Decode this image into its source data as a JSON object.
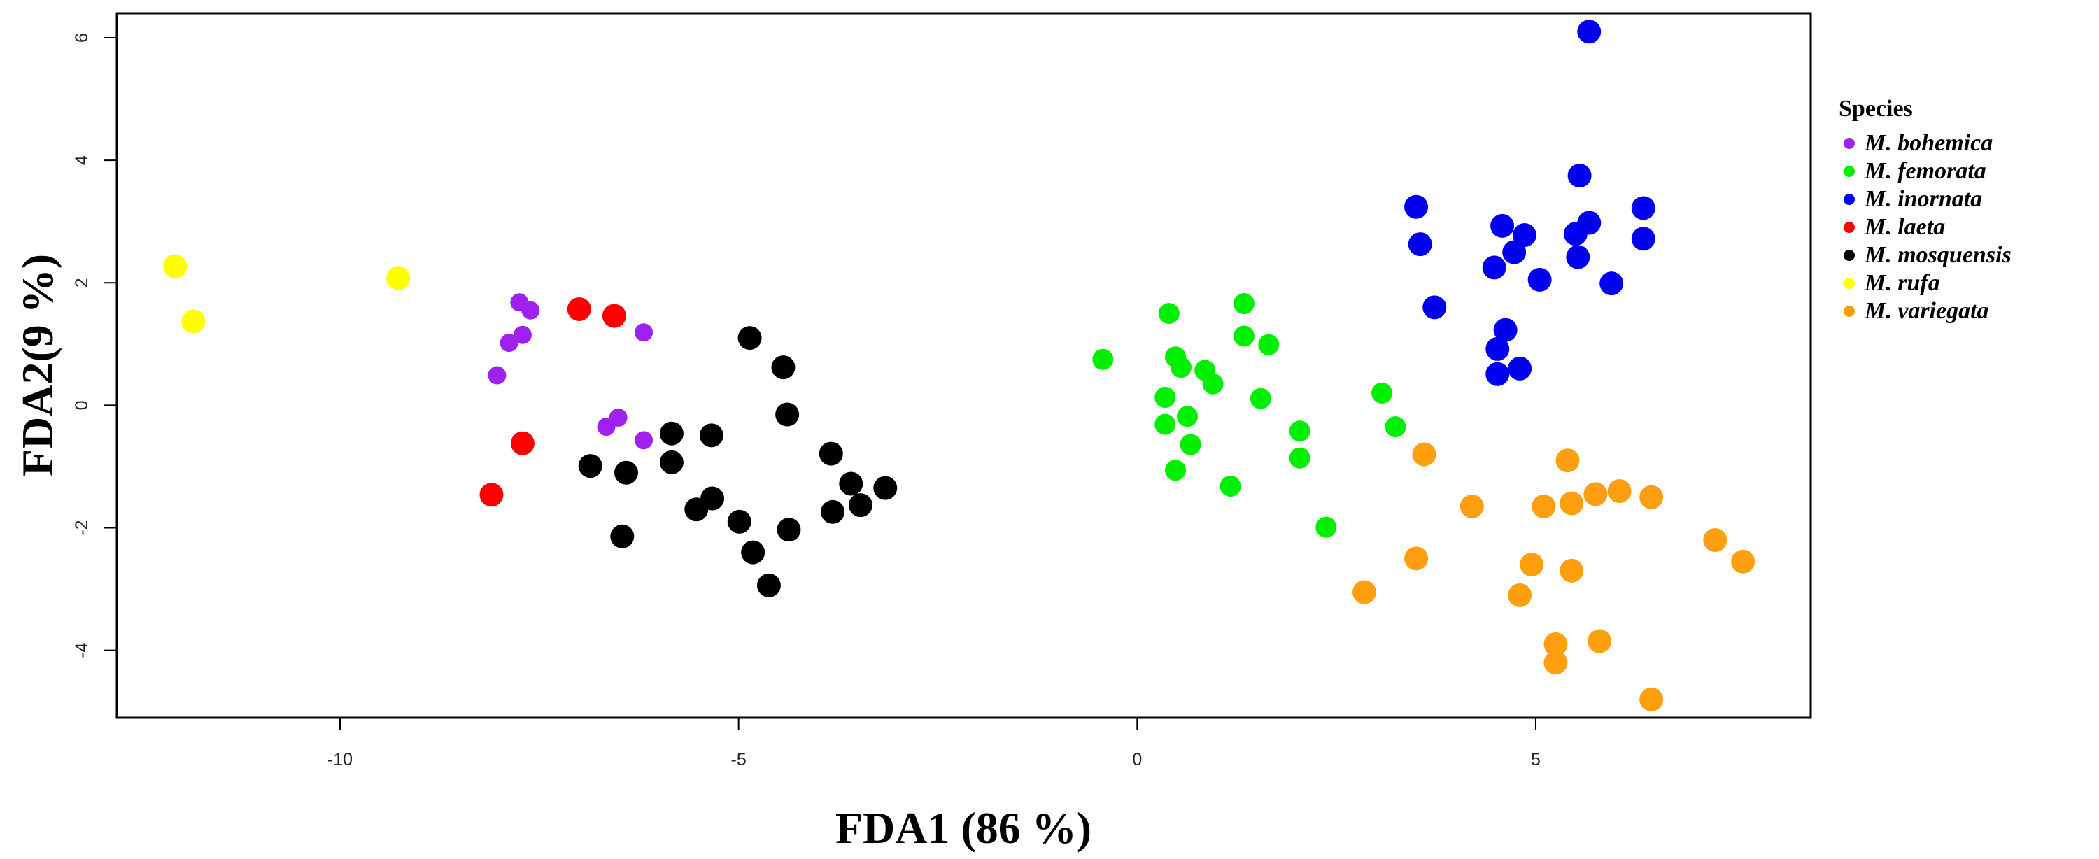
{
  "chart_data": {
    "type": "scatter",
    "title": "",
    "xlabel": "FDA1 (86 %)",
    "ylabel": "FDA2(9 %)",
    "xlim": [
      -12.8,
      8.45
    ],
    "ylim": [
      -5.1,
      6.4
    ],
    "xticks": [
      -10,
      -5,
      0,
      5
    ],
    "yticks": [
      -4,
      -2,
      0,
      2,
      4,
      6
    ],
    "grid": false,
    "legend": {
      "title": "Species",
      "placement": "right"
    },
    "series": [
      {
        "name": "M. bohemica",
        "color": "#a020f0",
        "points": [
          [
            -7.75,
            1.68
          ],
          [
            -7.61,
            1.55
          ],
          [
            -7.88,
            1.02
          ],
          [
            -7.71,
            1.15
          ],
          [
            -8.03,
            0.49
          ],
          [
            -6.19,
            1.19
          ],
          [
            -6.51,
            -0.2
          ],
          [
            -6.66,
            -0.35
          ],
          [
            -6.19,
            -0.57
          ]
        ]
      },
      {
        "name": "M. femorata",
        "color": "#00ee00",
        "points": [
          [
            -0.43,
            0.75
          ],
          [
            0.4,
            1.5
          ],
          [
            0.35,
            0.13
          ],
          [
            0.48,
            0.79
          ],
          [
            0.55,
            0.62
          ],
          [
            0.63,
            -0.18
          ],
          [
            0.35,
            -0.31
          ],
          [
            0.48,
            -1.06
          ],
          [
            0.67,
            -0.64
          ],
          [
            0.85,
            0.57
          ],
          [
            0.95,
            0.35
          ],
          [
            1.34,
            1.66
          ],
          [
            1.34,
            1.13
          ],
          [
            1.65,
            0.99
          ],
          [
            1.55,
            0.11
          ],
          [
            1.17,
            -1.32
          ],
          [
            2.04,
            -0.42
          ],
          [
            2.04,
            -0.86
          ],
          [
            2.37,
            -1.99
          ],
          [
            3.07,
            0.2
          ],
          [
            3.24,
            -0.35
          ]
        ]
      },
      {
        "name": "M. inornata",
        "color": "#0000ee",
        "points": [
          [
            5.67,
            6.1
          ],
          [
            5.55,
            3.75
          ],
          [
            3.5,
            3.24
          ],
          [
            3.55,
            2.63
          ],
          [
            4.58,
            2.93
          ],
          [
            4.86,
            2.78
          ],
          [
            4.73,
            2.5
          ],
          [
            4.48,
            2.25
          ],
          [
            5.05,
            2.05
          ],
          [
            5.67,
            2.98
          ],
          [
            5.5,
            2.8
          ],
          [
            5.53,
            2.42
          ],
          [
            6.35,
            3.22
          ],
          [
            6.35,
            2.72
          ],
          [
            5.95,
            1.99
          ],
          [
            3.73,
            1.6
          ],
          [
            4.62,
            1.23
          ],
          [
            4.52,
            0.92
          ],
          [
            4.8,
            0.6
          ],
          [
            4.52,
            0.51
          ]
        ]
      },
      {
        "name": "M. laeta",
        "color": "#ff0000",
        "points": [
          [
            -7.0,
            1.57
          ],
          [
            -6.56,
            1.46
          ],
          [
            -7.71,
            -0.62
          ],
          [
            -8.1,
            -1.46
          ]
        ]
      },
      {
        "name": "M. mosquensis",
        "color": "#000000",
        "points": [
          [
            -4.86,
            1.1
          ],
          [
            -4.44,
            0.62
          ],
          [
            -4.39,
            -0.15
          ],
          [
            -5.84,
            -0.46
          ],
          [
            -5.34,
            -0.49
          ],
          [
            -5.84,
            -0.93
          ],
          [
            -6.86,
            -0.99
          ],
          [
            -6.41,
            -1.1
          ],
          [
            -5.53,
            -1.7
          ],
          [
            -5.33,
            -1.52
          ],
          [
            -4.99,
            -1.9
          ],
          [
            -6.46,
            -2.14
          ],
          [
            -4.82,
            -2.4
          ],
          [
            -4.62,
            -2.94
          ],
          [
            -4.37,
            -2.03
          ],
          [
            -3.84,
            -0.79
          ],
          [
            -3.59,
            -1.28
          ],
          [
            -3.82,
            -1.74
          ],
          [
            -3.47,
            -1.63
          ],
          [
            -3.16,
            -1.35
          ]
        ]
      },
      {
        "name": "M. rufa",
        "color": "#ffff00",
        "points": [
          [
            -12.07,
            2.27
          ],
          [
            -11.84,
            1.37
          ],
          [
            -9.27,
            2.08
          ]
        ]
      },
      {
        "name": "M. variegata",
        "color": "#ff9f10",
        "points": [
          [
            3.6,
            -0.8
          ],
          [
            5.4,
            -0.9
          ],
          [
            4.2,
            -1.65
          ],
          [
            5.1,
            -1.65
          ],
          [
            5.45,
            -1.6
          ],
          [
            5.75,
            -1.45
          ],
          [
            6.05,
            -1.4
          ],
          [
            6.45,
            -1.5
          ],
          [
            7.25,
            -2.2
          ],
          [
            7.6,
            -2.55
          ],
          [
            3.5,
            -2.5
          ],
          [
            4.95,
            -2.6
          ],
          [
            5.45,
            -2.7
          ],
          [
            2.85,
            -3.05
          ],
          [
            4.8,
            -3.1
          ],
          [
            5.25,
            -3.9
          ],
          [
            5.25,
            -4.2
          ],
          [
            5.8,
            -3.85
          ],
          [
            6.45,
            -4.8
          ]
        ]
      }
    ]
  }
}
